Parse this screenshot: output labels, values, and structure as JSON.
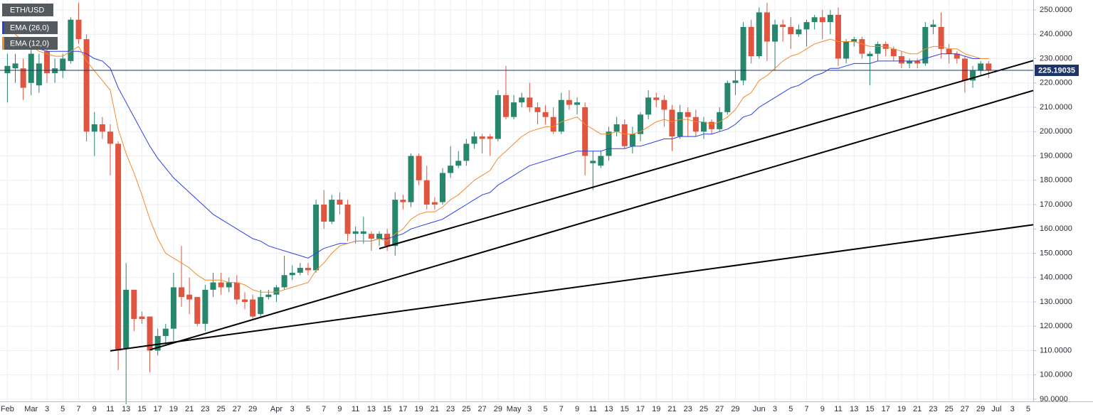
{
  "chart_data": {
    "type": "candlestick",
    "title": "ETH/USD",
    "categories": [
      "Feb",
      null,
      null,
      "Mar",
      null,
      "3",
      null,
      "5",
      null,
      "7",
      null,
      "9",
      null,
      "11",
      null,
      "13",
      null,
      "15",
      null,
      "17",
      null,
      "19",
      null,
      "21",
      null,
      "23",
      null,
      "25",
      null,
      "27",
      null,
      "29",
      null,
      null,
      "Apr",
      null,
      "3",
      null,
      "5",
      null,
      "7",
      null,
      "9",
      null,
      "11",
      null,
      "13",
      null,
      "15",
      null,
      "17",
      null,
      "19",
      null,
      "21",
      null,
      "23",
      null,
      "25",
      null,
      "27",
      null,
      "29",
      null,
      "May",
      null,
      "3",
      null,
      "5",
      null,
      "7",
      null,
      "9",
      null,
      "11",
      null,
      "13",
      null,
      "15",
      null,
      "17",
      null,
      "19",
      null,
      "21",
      null,
      "23",
      null,
      "25",
      null,
      "27",
      null,
      "29",
      null,
      null,
      "Jun",
      null,
      "3",
      null,
      "5",
      null,
      "7",
      null,
      "9",
      null,
      "11",
      null,
      "13",
      null,
      "15",
      null,
      "17",
      null,
      "19",
      null,
      "21",
      null,
      "23",
      null,
      "25",
      null,
      "27",
      null,
      "29",
      null,
      "Jul",
      null,
      "3",
      null,
      "5"
    ],
    "candles": [
      [
        224,
        232,
        212,
        227
      ],
      [
        226,
        232,
        220,
        228
      ],
      [
        226,
        230,
        213,
        218
      ],
      [
        220,
        236,
        215,
        232
      ],
      [
        219,
        232,
        216,
        228
      ],
      [
        233,
        236,
        220,
        224
      ],
      [
        224,
        230,
        220,
        226
      ],
      [
        225,
        232,
        222,
        230
      ],
      [
        229,
        247,
        228,
        246
      ],
      [
        246,
        253,
        236,
        238
      ],
      [
        238,
        240,
        196,
        200
      ],
      [
        200,
        208,
        190,
        203
      ],
      [
        203,
        206,
        197,
        200
      ],
      [
        200,
        203,
        182,
        195
      ],
      [
        195,
        196,
        102,
        110
      ],
      [
        111,
        146,
        88,
        135
      ],
      [
        135,
        135,
        118,
        123
      ],
      [
        124,
        126,
        121,
        123
      ],
      [
        124,
        124,
        101,
        110
      ],
      [
        110,
        119,
        108,
        116
      ],
      [
        116,
        121,
        112,
        119
      ],
      [
        119,
        142,
        114,
        136
      ],
      [
        136,
        153,
        128,
        132
      ],
      [
        133,
        140,
        125,
        131
      ],
      [
        132,
        132,
        120,
        121
      ],
      [
        121,
        137,
        118,
        135
      ],
      [
        135,
        142,
        132,
        138
      ],
      [
        138,
        142,
        133,
        136
      ],
      [
        136,
        140,
        134,
        138
      ],
      [
        138,
        141,
        129,
        131
      ],
      [
        131,
        134,
        127,
        130
      ],
      [
        131,
        133,
        123,
        124
      ],
      [
        125,
        135,
        124,
        132
      ],
      [
        132,
        135,
        131,
        133
      ],
      [
        133,
        137,
        130,
        136
      ],
      [
        136,
        149,
        135,
        141
      ],
      [
        141,
        145,
        139,
        142
      ],
      [
        142,
        146,
        141,
        144
      ],
      [
        144,
        146,
        141,
        143
      ],
      [
        143,
        172,
        142,
        170
      ],
      [
        170,
        176,
        160,
        163
      ],
      [
        163,
        174,
        162,
        172
      ],
      [
        172,
        175,
        166,
        170
      ],
      [
        170,
        172,
        155,
        158
      ],
      [
        158,
        161,
        154,
        159
      ],
      [
        158,
        165,
        154,
        159
      ],
      [
        158,
        159,
        151,
        156
      ],
      [
        156,
        159,
        153,
        158
      ],
      [
        158,
        160,
        151,
        153
      ],
      [
        153,
        175,
        149,
        172
      ],
      [
        172,
        174,
        168,
        171
      ],
      [
        171,
        191,
        169,
        190
      ],
      [
        190,
        191,
        178,
        180
      ],
      [
        180,
        186,
        168,
        170
      ],
      [
        171,
        173,
        168,
        170
      ],
      [
        171,
        185,
        170,
        183
      ],
      [
        183,
        194,
        181,
        186
      ],
      [
        186,
        192,
        185,
        188
      ],
      [
        188,
        197,
        186,
        195
      ],
      [
        195,
        200,
        193,
        198
      ],
      [
        198,
        199,
        191,
        197
      ],
      [
        198,
        199,
        190,
        197
      ],
      [
        197,
        217,
        196,
        215
      ],
      [
        215,
        227,
        205,
        206
      ],
      [
        206,
        215,
        205,
        212
      ],
      [
        212,
        216,
        210,
        214
      ],
      [
        214,
        220,
        208,
        210
      ],
      [
        210,
        212,
        203,
        208
      ],
      [
        208,
        211,
        203,
        206
      ],
      [
        206,
        210,
        199,
        200
      ],
      [
        200,
        216,
        199,
        213
      ],
      [
        213,
        217,
        209,
        211
      ],
      [
        211,
        214,
        207,
        212
      ],
      [
        210,
        212,
        182,
        190
      ],
      [
        187,
        192,
        176,
        188
      ],
      [
        186,
        192,
        185,
        190
      ],
      [
        190,
        202,
        188,
        200
      ],
      [
        200,
        206,
        198,
        203
      ],
      [
        203,
        205,
        193,
        194
      ],
      [
        194,
        202,
        191,
        199
      ],
      [
        199,
        208,
        196,
        207
      ],
      [
        207,
        217,
        205,
        214
      ],
      [
        214,
        216,
        210,
        213
      ],
      [
        213,
        215,
        202,
        209
      ],
      [
        209,
        211,
        192,
        198
      ],
      [
        198,
        211,
        197,
        208
      ],
      [
        208,
        210,
        198,
        206
      ],
      [
        206,
        209,
        198,
        200
      ],
      [
        200,
        206,
        197,
        204
      ],
      [
        204,
        205,
        199,
        201
      ],
      [
        201,
        210,
        200,
        208
      ],
      [
        208,
        221,
        207,
        220
      ],
      [
        220,
        225,
        215,
        221
      ],
      [
        221,
        245,
        219,
        243
      ],
      [
        243,
        246,
        228,
        231
      ],
      [
        231,
        251,
        230,
        249
      ],
      [
        249,
        253,
        229,
        237
      ],
      [
        237,
        246,
        225,
        244
      ],
      [
        244,
        246,
        237,
        243
      ],
      [
        243,
        247,
        234,
        240
      ],
      [
        240,
        244,
        239,
        242
      ],
      [
        242,
        246,
        235,
        245
      ],
      [
        245,
        248,
        242,
        247
      ],
      [
        247,
        250,
        238,
        245
      ],
      [
        245,
        250,
        240,
        248
      ],
      [
        248,
        251,
        227,
        230
      ],
      [
        230,
        238,
        228,
        237
      ],
      [
        237,
        239,
        235,
        238
      ],
      [
        238,
        239,
        230,
        232
      ],
      [
        231,
        233,
        219,
        232
      ],
      [
        232,
        237,
        229,
        236
      ],
      [
        236,
        237,
        231,
        234
      ],
      [
        234,
        235,
        229,
        231
      ],
      [
        231,
        233,
        226,
        228
      ],
      [
        228,
        230,
        226,
        229
      ],
      [
        229,
        230,
        226,
        228
      ],
      [
        228,
        245,
        227,
        243
      ],
      [
        243,
        246,
        240,
        244
      ],
      [
        243,
        249,
        230,
        234
      ],
      [
        234,
        236,
        228,
        232
      ],
      [
        232,
        233,
        228,
        230
      ],
      [
        230,
        231,
        216,
        221
      ],
      [
        221,
        227,
        218,
        225
      ],
      [
        225,
        229,
        223,
        228
      ],
      [
        228,
        229,
        222,
        225.19035
      ],
      null,
      null,
      null,
      null,
      null
    ],
    "up_color": "#26876c",
    "down_color": "#e0553f",
    "series": [
      {
        "name": "EMA (26,0)",
        "color": "#2a3fe6",
        "values": [
          236,
          235,
          235,
          234,
          234,
          233,
          233,
          233,
          233,
          233,
          232,
          230,
          229,
          226,
          218,
          212,
          206,
          200,
          194,
          189,
          185,
          181,
          178,
          175,
          172,
          169,
          166,
          164,
          162,
          160,
          158,
          156,
          155,
          153,
          152,
          151,
          150,
          149,
          148,
          150,
          152,
          153,
          154,
          154,
          155,
          155,
          155,
          156,
          156,
          157,
          158,
          160,
          161,
          162,
          163,
          164,
          166,
          168,
          170,
          172,
          174,
          175,
          178,
          180,
          182,
          184,
          186,
          187,
          188,
          189,
          190,
          191,
          192,
          192,
          192,
          192,
          193,
          193,
          193,
          194,
          194,
          195,
          196,
          197,
          197,
          198,
          198,
          198,
          199,
          199,
          200,
          201,
          203,
          206,
          207,
          210,
          212,
          214,
          216,
          218,
          219,
          221,
          223,
          224,
          226,
          226,
          227,
          228,
          228,
          228,
          229,
          229,
          229,
          229,
          229,
          229,
          230,
          231,
          232,
          232,
          232,
          231,
          230,
          230,
          230,
          null,
          null,
          null,
          null,
          null
        ]
      },
      {
        "name": "EMA (12,0)",
        "color": "#f28a2c",
        "values": [
          243,
          240,
          237,
          235,
          233,
          232,
          231,
          231,
          233,
          235,
          229,
          225,
          221,
          217,
          201,
          191,
          183,
          174,
          164,
          156,
          150,
          148,
          146,
          144,
          141,
          139,
          139,
          139,
          138,
          138,
          137,
          135,
          134,
          134,
          134,
          135,
          136,
          137,
          138,
          143,
          146,
          150,
          153,
          154,
          155,
          155,
          155,
          156,
          155,
          158,
          160,
          164,
          166,
          167,
          167,
          169,
          172,
          174,
          177,
          180,
          182,
          184,
          189,
          192,
          195,
          198,
          200,
          201,
          202,
          202,
          204,
          205,
          206,
          203,
          201,
          199,
          199,
          200,
          199,
          199,
          200,
          202,
          204,
          205,
          204,
          205,
          205,
          204,
          204,
          203,
          204,
          206,
          209,
          214,
          216,
          221,
          223,
          226,
          229,
          231,
          232,
          234,
          236,
          237,
          238,
          237,
          237,
          237,
          236,
          235,
          235,
          235,
          234,
          233,
          232,
          232,
          234,
          235,
          235,
          234,
          234,
          232,
          231,
          230,
          230,
          null,
          null,
          null,
          null,
          null
        ]
      }
    ],
    "trendlines": [
      {
        "x": [
          47,
          124
        ],
        "y": [
          151.9,
          223.9
        ]
      },
      {
        "x": [
          18,
          124
        ],
        "y": [
          110.3,
          211.5
        ]
      },
      {
        "x": [
          13,
          124
        ],
        "y": [
          109.9,
          159.2
        ]
      }
    ],
    "trendline_color": "#000000",
    "price_line": 225.19035,
    "price_line_color": "#1d3566",
    "ylim": [
      90,
      250
    ],
    "yticks": [
      {
        "value": 90,
        "label": "90.0000"
      },
      {
        "value": 100,
        "label": "100.0000"
      },
      {
        "value": 110,
        "label": "110.0000"
      },
      {
        "value": 120,
        "label": "120.0000"
      },
      {
        "value": 130,
        "label": "130.0000"
      },
      {
        "value": 140,
        "label": "140.0000"
      },
      {
        "value": 150,
        "label": "150.0000"
      },
      {
        "value": 160,
        "label": "160.0000"
      },
      {
        "value": 170,
        "label": "170.0000"
      },
      {
        "value": 180,
        "label": "180.0000"
      },
      {
        "value": 190,
        "label": "190.0000"
      },
      {
        "value": 200,
        "label": "200.0000"
      },
      {
        "value": 210,
        "label": "210.0000"
      },
      {
        "value": 220,
        "label": "220.0000"
      },
      {
        "value": 230,
        "label": "230.0000"
      },
      {
        "value": 240,
        "label": "240.0000"
      },
      {
        "value": 250,
        "label": "250.0000"
      }
    ],
    "grid": true
  }
}
